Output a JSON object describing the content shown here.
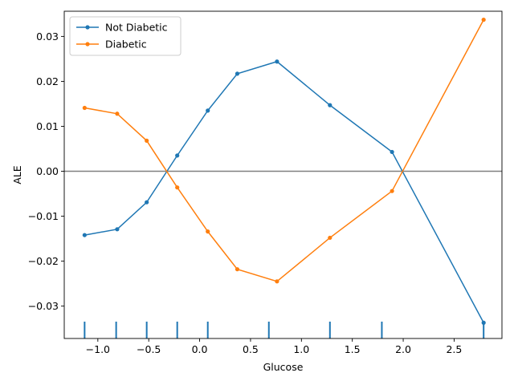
{
  "chart_data": {
    "type": "line",
    "xlabel": "Glucose",
    "ylabel": "ALE",
    "xlim": [
      -1.33,
      2.97
    ],
    "ylim": [
      -0.0372,
      0.0356
    ],
    "xticks": [
      -1.0,
      -0.5,
      0.0,
      0.5,
      1.0,
      1.5,
      2.0,
      2.5
    ],
    "xtick_labels": [
      "−1.0",
      "−0.5",
      "0.0",
      "0.5",
      "1.0",
      "1.5",
      "2.0",
      "2.5"
    ],
    "yticks": [
      -0.03,
      -0.02,
      -0.01,
      0.0,
      0.01,
      0.02,
      0.03
    ],
    "ytick_labels": [
      "−0.03",
      "−0.02",
      "−0.01",
      "0.00",
      "0.01",
      "0.02",
      "0.03"
    ],
    "zero_line": 0.0,
    "legend_position": "upper-left",
    "series": [
      {
        "name": "Not Diabetic",
        "color": "#1f77b4",
        "x": [
          -1.13,
          -0.81,
          -0.52,
          -0.22,
          0.08,
          0.37,
          0.76,
          1.28,
          1.89,
          2.79
        ],
        "y": [
          -0.0142,
          -0.0129,
          -0.0069,
          0.0035,
          0.0135,
          0.0217,
          0.0244,
          0.0147,
          0.0043,
          -0.0337
        ]
      },
      {
        "name": "Diabetic",
        "color": "#ff7f0e",
        "x": [
          -1.13,
          -0.81,
          -0.52,
          -0.22,
          0.08,
          0.37,
          0.76,
          1.28,
          1.89,
          2.79
        ],
        "y": [
          0.0141,
          0.0128,
          0.0068,
          -0.0036,
          -0.0134,
          -0.0218,
          -0.0245,
          -0.0148,
          -0.0044,
          0.0337
        ]
      }
    ],
    "rug": {
      "color": "#1f77b4",
      "x": [
        -1.13,
        -0.82,
        -0.52,
        -0.22,
        0.08,
        0.68,
        1.28,
        1.79,
        2.79
      ]
    },
    "zero_line_color": "#808080"
  }
}
